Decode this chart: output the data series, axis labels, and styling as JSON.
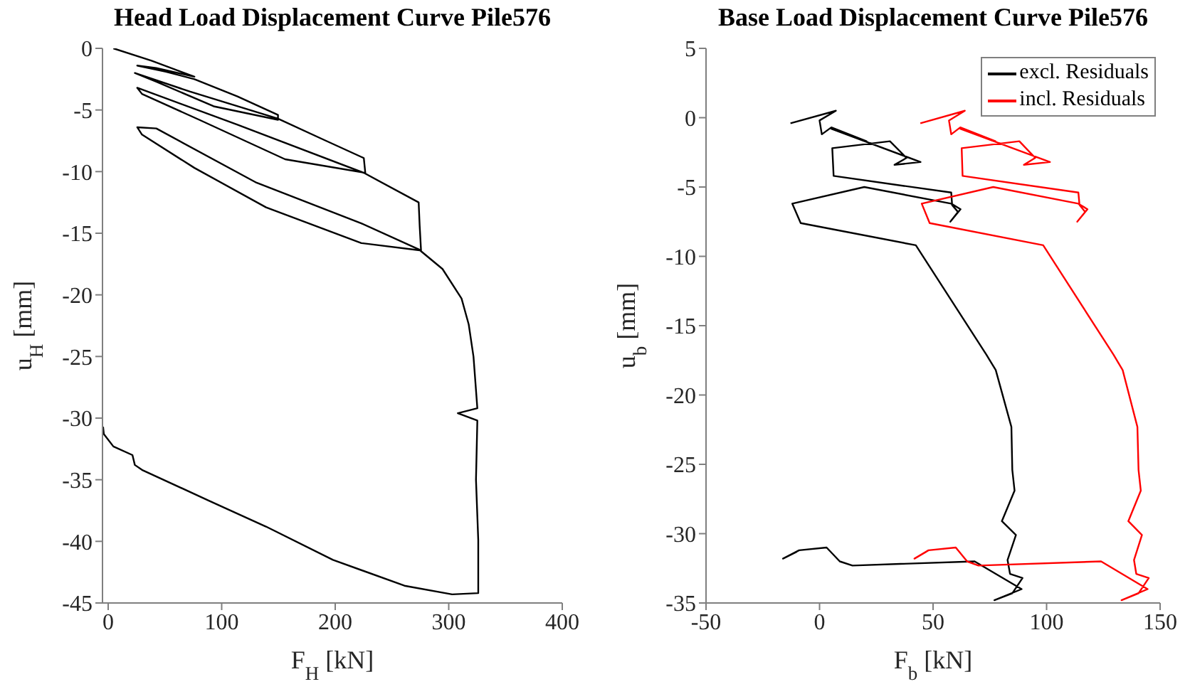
{
  "chart_data": [
    {
      "type": "line",
      "title": "Head Load Displacement Curve Pile576",
      "xlabel": "F$_{H}$ [kN]",
      "ylabel": "u$_{H}$ [mm]",
      "xlim": [
        -5,
        400
      ],
      "xticks": [
        0,
        100,
        200,
        300,
        400
      ],
      "ylim": [
        -45,
        0
      ],
      "yticks": [
        -45,
        -40,
        -35,
        -30,
        -25,
        -20,
        -15,
        -10,
        -5,
        0
      ],
      "legend": false,
      "series": [
        {
          "color": "#000000",
          "x": [
            4.6,
            38.2,
            76,
            42.4,
            25.6,
            50.8,
            76,
            113.9,
            149.6,
            149.6,
            92.9,
            42.4,
            23.5,
            71.8,
            149.6,
            189.5,
            225.2,
            226.5,
            155.9,
            80.3,
            29.8,
            25.6,
            113.9,
            225.2,
            273.5,
            274.4,
            275.6,
            223,
            139.1,
            76,
            29.8,
            25.6,
            42.4,
            130.7,
            223,
            273.5,
            294.5,
            311.3,
            317.6,
            321.8,
            325.2,
            308,
            325.2,
            324,
            326,
            326,
            303,
            261,
            198,
            139,
            88.7,
            29.8,
            23.5,
            21.4,
            4.6,
            -3.8,
            -4.5
          ],
          "values": [
            0,
            -1,
            -2.3,
            -1.6,
            -1.4,
            -1.9,
            -2.5,
            -3.9,
            -5.4,
            -5.8,
            -4.7,
            -2.7,
            -2,
            -3.5,
            -5.7,
            -7.4,
            -8.9,
            -10.1,
            -9,
            -5.8,
            -3.7,
            -3.2,
            -6.2,
            -10.1,
            -12.5,
            -14.4,
            -16.4,
            -15.8,
            -12.9,
            -9.7,
            -7,
            -6.4,
            -6.5,
            -10.9,
            -14.2,
            -16.3,
            -17.9,
            -20.3,
            -22.4,
            -25,
            -29.2,
            -29.6,
            -30.2,
            -35,
            -39.9,
            -44.2,
            -44.3,
            -43.6,
            -41.5,
            -38.8,
            -36.7,
            -34.2,
            -33.8,
            -33,
            -32.3,
            -31.3,
            -30.7
          ]
        }
      ]
    },
    {
      "type": "line",
      "title": "Base Load Displacement Curve Pile576",
      "xlabel": "F$_{b}$ [kN]",
      "ylabel": "u$_{b}$ [mm]",
      "xlim": [
        -50,
        150
      ],
      "xticks": [
        -50,
        0,
        50,
        100,
        150
      ],
      "ylim": [
        -35,
        5
      ],
      "yticks": [
        -35,
        -30,
        -25,
        -20,
        -15,
        -10,
        -5,
        0,
        5
      ],
      "legend": "top right",
      "series": [
        {
          "name": "excl. Residuals",
          "color": "#000000",
          "x": [
            -12.8,
            7.2,
            0,
            1,
            5.2,
            20.7,
            5.2,
            44.5,
            33,
            38.3,
            31,
            5.6,
            6.2,
            58,
            58.4,
            61,
            57.6,
            62.1,
            58,
            19.7,
            -12,
            -8.3,
            42.4,
            73.5,
            77.6,
            84.5,
            84.9,
            85.9,
            80.3,
            86.5,
            82.8,
            83.9,
            89.4,
            84.9,
            77,
            89,
            68.3,
            14.5,
            8.9,
            3.1,
            -9,
            -16.1,
            -10
          ],
          "values": [
            -0.4,
            0.5,
            -0.2,
            -1.2,
            -0.7,
            -1.7,
            -0.8,
            -3.2,
            -3.4,
            -2.9,
            -1.7,
            -2.2,
            -4.2,
            -5.4,
            -6.3,
            -6.8,
            -7.5,
            -6.6,
            -6.2,
            -5,
            -6.2,
            -7.6,
            -9.2,
            -17.1,
            -18.2,
            -22.3,
            -25.4,
            -26.9,
            -29.1,
            -30.1,
            -31.9,
            -32.9,
            -33.2,
            -34.3,
            -34.8,
            -34,
            -32,
            -32.3,
            -32,
            -31,
            -31.2,
            -31.8,
            -31.3
          ]
        },
        {
          "name": "incl. Residuals",
          "color": "#ff0000",
          "x": [
            44.4,
            64,
            57,
            58,
            62,
            77.5,
            62,
            101.5,
            90,
            95,
            88,
            62.6,
            63,
            114,
            114.5,
            117,
            113.5,
            118,
            114,
            76.5,
            45,
            48.5,
            98.5,
            129.5,
            133.5,
            140,
            140.5,
            141.5,
            136,
            142,
            138.5,
            139.5,
            145,
            140.5,
            133,
            144.5,
            124,
            70,
            65,
            60,
            48,
            41.8,
            47
          ],
          "values": [
            -0.4,
            0.5,
            -0.2,
            -1.2,
            -0.7,
            -1.7,
            -0.8,
            -3.2,
            -3.4,
            -2.9,
            -1.7,
            -2.2,
            -4.2,
            -5.4,
            -6.3,
            -6.8,
            -7.5,
            -6.6,
            -6.2,
            -5,
            -6.2,
            -7.6,
            -9.2,
            -17.1,
            -18.2,
            -22.3,
            -25.4,
            -26.9,
            -29.1,
            -30.1,
            -31.9,
            -32.9,
            -33.2,
            -34.3,
            -34.8,
            -34,
            -32,
            -32.3,
            -32,
            -31,
            -31.2,
            -31.8,
            -31.3
          ]
        }
      ]
    }
  ]
}
